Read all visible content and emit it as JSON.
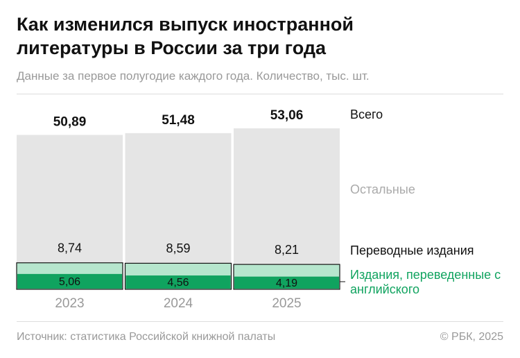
{
  "chart_data": {
    "type": "bar",
    "title": "Как изменился выпуск иностранной литературы в России за три года",
    "subtitle": "Данные за первое полугодие каждого года. Количество, тыс. шт.",
    "categories": [
      "2023",
      "2024",
      "2025"
    ],
    "series": [
      {
        "name": "Всего",
        "color": "#e5e5e5",
        "values": [
          50.89,
          51.48,
          53.06
        ],
        "value_labels": [
          "50,89",
          "51,48",
          "53,06"
        ]
      },
      {
        "name": "Переводные издания",
        "color": "#b6e6cd",
        "values": [
          8.74,
          8.59,
          8.21
        ],
        "value_labels": [
          "8,74",
          "8,59",
          "8,21"
        ]
      },
      {
        "name": "Издания, переведенные с английского",
        "color": "#10a35f",
        "values": [
          5.06,
          4.56,
          4.19
        ],
        "value_labels": [
          "5,06",
          "4,56",
          "4,19"
        ]
      }
    ],
    "annotations": [
      "Остальные"
    ],
    "source": "Источник: статистика Российской книжной палаты",
    "copyright": "© РБК, 2025"
  }
}
